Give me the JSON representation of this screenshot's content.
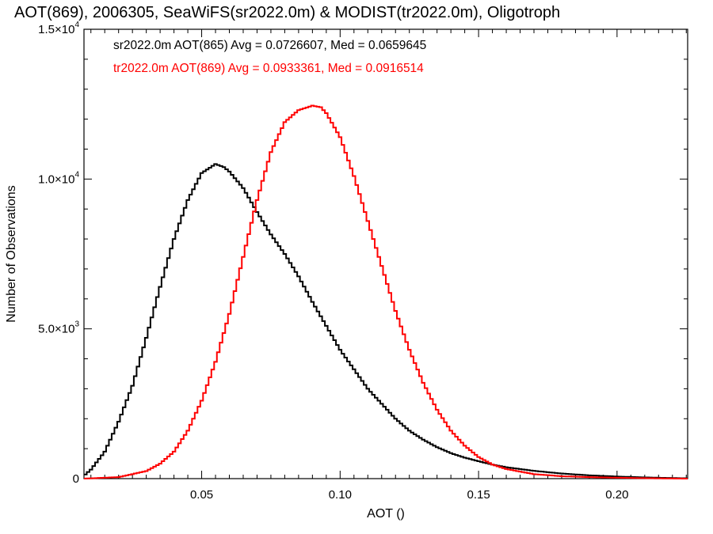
{
  "chart_data": {
    "type": "line",
    "title": "AOT(869), 2006305, SeaWiFS(sr2022.0m) & MODIST(tr2022.0m), Oligotroph",
    "xlabel": "AOT ()",
    "ylabel": "Number of Observations",
    "xlim": [
      0.0075,
      0.2255
    ],
    "ylim": [
      0,
      15000
    ],
    "grid": false,
    "x_ticks": [
      {
        "value": 0.05,
        "label": "0.05"
      },
      {
        "value": 0.1,
        "label": "0.10"
      },
      {
        "value": 0.15,
        "label": "0.15"
      },
      {
        "value": 0.2,
        "label": "0.20"
      }
    ],
    "y_ticks": [
      {
        "value": 0,
        "label": "0",
        "exp": ""
      },
      {
        "value": 5000,
        "label": "5.0×10",
        "exp": "3"
      },
      {
        "value": 10000,
        "label": "1.0×10",
        "exp": "4"
      },
      {
        "value": 15000,
        "label": "1.5×10",
        "exp": "4"
      }
    ],
    "annotations": [
      {
        "text": "sr2022.0m AOT(865) Avg = 0.0726607, Med = 0.0659645",
        "color": "#000000"
      },
      {
        "text": "tr2022.0m AOT(869) Avg = 0.0933361, Med = 0.0916514",
        "color": "#ff0000"
      }
    ],
    "series": [
      {
        "color": "#000000",
        "x": [
          0.0075,
          0.01,
          0.015,
          0.02,
          0.025,
          0.03,
          0.035,
          0.04,
          0.045,
          0.05,
          0.055,
          0.058,
          0.06,
          0.065,
          0.07,
          0.075,
          0.08,
          0.085,
          0.09,
          0.095,
          0.1,
          0.105,
          0.11,
          0.115,
          0.12,
          0.125,
          0.13,
          0.135,
          0.14,
          0.145,
          0.15,
          0.155,
          0.16,
          0.17,
          0.18,
          0.19,
          0.2,
          0.21,
          0.22,
          0.2255
        ],
        "y": [
          100,
          300,
          900,
          1900,
          3100,
          4700,
          6400,
          8000,
          9300,
          10200,
          10500,
          10400,
          10250,
          9700,
          8900,
          8150,
          7500,
          6750,
          5900,
          5100,
          4300,
          3650,
          3000,
          2500,
          2000,
          1600,
          1300,
          1050,
          850,
          700,
          580,
          470,
          380,
          260,
          170,
          110,
          70,
          40,
          20,
          10
        ]
      },
      {
        "color": "#ff0000",
        "x": [
          0.0075,
          0.02,
          0.03,
          0.035,
          0.04,
          0.045,
          0.05,
          0.055,
          0.06,
          0.065,
          0.07,
          0.075,
          0.08,
          0.085,
          0.09,
          0.093,
          0.095,
          0.1,
          0.105,
          0.11,
          0.115,
          0.12,
          0.125,
          0.13,
          0.135,
          0.14,
          0.145,
          0.15,
          0.155,
          0.16,
          0.17,
          0.18,
          0.19,
          0.2,
          0.21,
          0.22,
          0.2255
        ],
        "y": [
          0,
          50,
          250,
          500,
          900,
          1600,
          2600,
          3900,
          5500,
          7400,
          9300,
          10900,
          11900,
          12300,
          12450,
          12400,
          12200,
          11400,
          10100,
          8600,
          7100,
          5600,
          4300,
          3200,
          2300,
          1600,
          1100,
          720,
          470,
          320,
          150,
          80,
          50,
          30,
          15,
          5,
          0
        ]
      }
    ]
  }
}
